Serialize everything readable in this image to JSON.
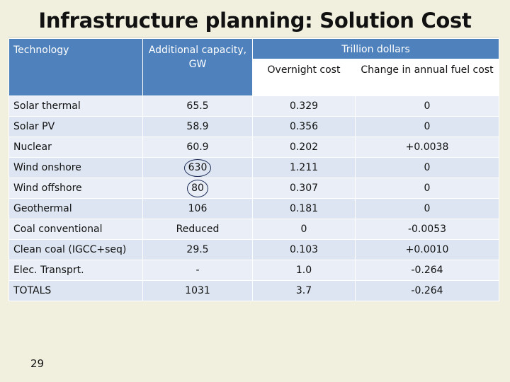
{
  "slide": {
    "title": "Infrastructure planning: Solution Cost",
    "page_number": "29"
  },
  "table": {
    "headers": {
      "technology": "Technology",
      "capacity": "Additional capacity, GW",
      "group": "Trillion dollars",
      "overnight": "Overnight cost",
      "fuel": "Change in annual fuel cost"
    },
    "rows": [
      {
        "technology": "Solar thermal",
        "capacity": "65.5",
        "overnight": "0.329",
        "fuel": "0"
      },
      {
        "technology": "Solar PV",
        "capacity": "58.9",
        "overnight": "0.356",
        "fuel": "0"
      },
      {
        "technology": "Nuclear",
        "capacity": "60.9",
        "overnight": "0.202",
        "fuel": "+0.0038"
      },
      {
        "technology": "Wind onshore",
        "capacity": "630",
        "overnight": "1.211",
        "fuel": "0"
      },
      {
        "technology": "Wind offshore",
        "capacity": "80",
        "overnight": "0.307",
        "fuel": "0"
      },
      {
        "technology": "Geothermal",
        "capacity": "106",
        "overnight": "0.181",
        "fuel": "0"
      },
      {
        "technology": "Coal conventional",
        "capacity": "Reduced",
        "overnight": "0",
        "fuel": "-0.0053"
      },
      {
        "technology": "Clean coal (IGCC+seq)",
        "capacity": "29.5",
        "overnight": "0.103",
        "fuel": "+0.0010"
      },
      {
        "technology": "Elec. Transprt.",
        "capacity": "-",
        "overnight": "1.0",
        "fuel": "-0.264"
      },
      {
        "technology": "TOTALS",
        "capacity": "1031",
        "overnight": "3.7",
        "fuel": "-0.264"
      }
    ],
    "circled_capacity_rows": [
      "Wind onshore",
      "Wind offshore"
    ]
  }
}
